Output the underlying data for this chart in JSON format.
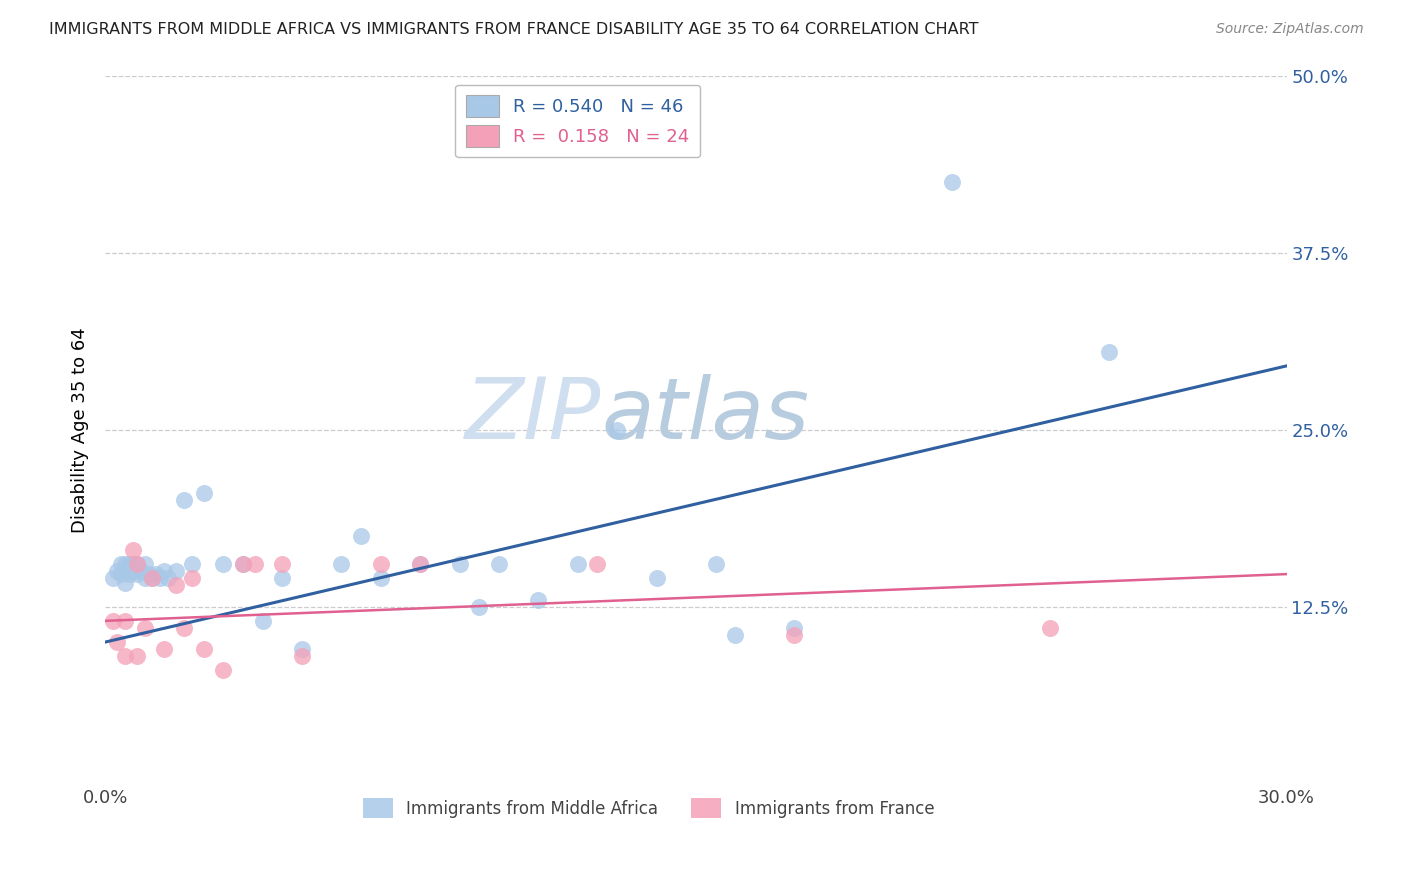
{
  "title": "IMMIGRANTS FROM MIDDLE AFRICA VS IMMIGRANTS FROM FRANCE DISABILITY AGE 35 TO 64 CORRELATION CHART",
  "source": "Source: ZipAtlas.com",
  "ylabel": "Disability Age 35 to 64",
  "xlim": [
    0.0,
    0.3
  ],
  "ylim": [
    0.0,
    0.5
  ],
  "xticks": [
    0.0,
    0.05,
    0.1,
    0.15,
    0.2,
    0.25,
    0.3
  ],
  "xtick_labels": [
    "0.0%",
    "",
    "",
    "",
    "",
    "",
    "30.0%"
  ],
  "ytick_labels_right": [
    "12.5%",
    "25.0%",
    "37.5%",
    "50.0%"
  ],
  "yticks_right": [
    0.125,
    0.25,
    0.375,
    0.5
  ],
  "blue_R": 0.54,
  "blue_N": 46,
  "pink_R": 0.158,
  "pink_N": 24,
  "blue_color": "#a8c8e8",
  "pink_color": "#f4a0b8",
  "blue_line_color": "#3060a0",
  "pink_line_color": "#e06090",
  "blue_scatter_x": [
    0.002,
    0.003,
    0.004,
    0.004,
    0.005,
    0.005,
    0.006,
    0.006,
    0.007,
    0.007,
    0.008,
    0.008,
    0.009,
    0.01,
    0.01,
    0.011,
    0.012,
    0.013,
    0.014,
    0.015,
    0.016,
    0.018,
    0.02,
    0.022,
    0.025,
    0.03,
    0.035,
    0.04,
    0.045,
    0.05,
    0.06,
    0.065,
    0.07,
    0.08,
    0.09,
    0.095,
    0.1,
    0.11,
    0.12,
    0.13,
    0.14,
    0.155,
    0.16,
    0.175,
    0.215,
    0.255
  ],
  "blue_scatter_y": [
    0.145,
    0.15,
    0.148,
    0.155,
    0.142,
    0.155,
    0.148,
    0.155,
    0.15,
    0.155,
    0.148,
    0.155,
    0.15,
    0.145,
    0.155,
    0.148,
    0.145,
    0.148,
    0.145,
    0.15,
    0.145,
    0.15,
    0.2,
    0.155,
    0.205,
    0.155,
    0.155,
    0.115,
    0.145,
    0.095,
    0.155,
    0.175,
    0.145,
    0.155,
    0.155,
    0.125,
    0.155,
    0.13,
    0.155,
    0.25,
    0.145,
    0.155,
    0.105,
    0.11,
    0.425,
    0.305
  ],
  "pink_scatter_x": [
    0.002,
    0.003,
    0.005,
    0.005,
    0.007,
    0.008,
    0.008,
    0.01,
    0.012,
    0.015,
    0.018,
    0.02,
    0.022,
    0.025,
    0.03,
    0.035,
    0.038,
    0.045,
    0.05,
    0.07,
    0.08,
    0.125,
    0.175,
    0.24
  ],
  "pink_scatter_y": [
    0.115,
    0.1,
    0.115,
    0.09,
    0.165,
    0.155,
    0.09,
    0.11,
    0.145,
    0.095,
    0.14,
    0.11,
    0.145,
    0.095,
    0.08,
    0.155,
    0.155,
    0.155,
    0.09,
    0.155,
    0.155,
    0.155,
    0.105,
    0.11
  ],
  "watermark_zip": "ZIP",
  "watermark_atlas": "atlas",
  "legend_label_blue": "Immigrants from Middle Africa",
  "legend_label_pink": "Immigrants from France",
  "background_color": "#ffffff",
  "blue_line_x0": 0.0,
  "blue_line_y0": 0.1,
  "blue_line_x1": 0.3,
  "blue_line_y1": 0.295,
  "pink_line_x0": 0.0,
  "pink_line_y0": 0.115,
  "pink_line_x1": 0.3,
  "pink_line_y1": 0.148
}
